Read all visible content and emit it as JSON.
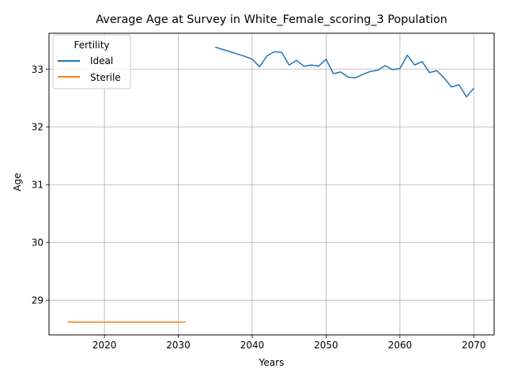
{
  "chart_data": {
    "type": "line",
    "title": "Average Age at Survey in White_Female_scoring_3 Population",
    "xlabel": "Years",
    "ylabel": "Age",
    "xlim": [
      2012.5,
      2072.75
    ],
    "ylim": [
      28.4,
      33.62
    ],
    "xticks": [
      2020,
      2030,
      2040,
      2050,
      2060,
      2070
    ],
    "yticks": [
      29,
      30,
      31,
      32,
      33
    ],
    "grid": true,
    "legend": {
      "title": "Fertility",
      "position": "top-left"
    },
    "series": [
      {
        "name": "Ideal",
        "color": "#1f77b4",
        "x": [
          2035,
          2036,
          2037,
          2038,
          2039,
          2040,
          2041,
          2042,
          2043,
          2044,
          2045,
          2046,
          2047,
          2048,
          2049,
          2050,
          2051,
          2052,
          2053,
          2054,
          2055,
          2056,
          2057,
          2058,
          2059,
          2060,
          2061,
          2062,
          2063,
          2064,
          2065,
          2066,
          2067,
          2068,
          2069,
          2070
        ],
        "y": [
          33.38,
          33.34,
          33.3,
          33.26,
          33.22,
          33.17,
          33.04,
          33.23,
          33.3,
          33.29,
          33.07,
          33.15,
          33.05,
          33.07,
          33.05,
          33.17,
          32.92,
          32.95,
          32.86,
          32.85,
          32.91,
          32.96,
          32.98,
          33.06,
          32.99,
          33.01,
          33.24,
          33.07,
          33.13,
          32.94,
          32.97,
          32.84,
          32.69,
          32.73,
          32.52,
          32.67
        ]
      },
      {
        "name": "Sterile",
        "color": "#ff7f0e",
        "x": [
          2015,
          2031
        ],
        "y": [
          28.62,
          28.62
        ]
      }
    ]
  }
}
